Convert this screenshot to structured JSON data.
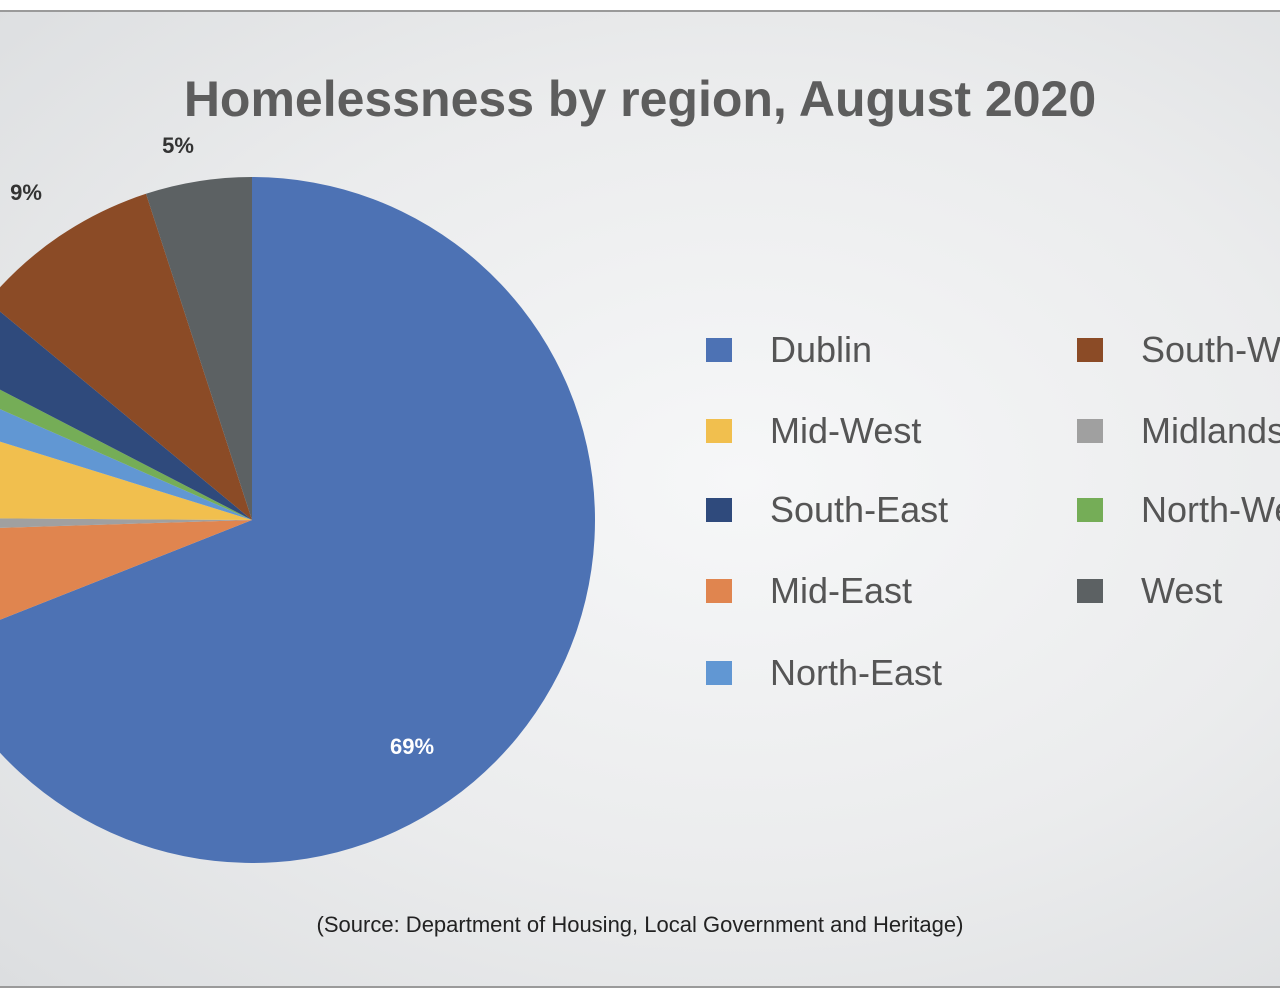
{
  "chart_data": {
    "type": "pie",
    "title": "Homelessness by region, August 2020",
    "source": "(Source: Department of Housing, Local Government and Heritage)",
    "slices": [
      {
        "name": "Dublin",
        "value": 69,
        "label": "69%",
        "color": "#4d72b4"
      },
      {
        "name": "Mid-East",
        "value": 5.5,
        "label": "",
        "color": "#e0854f"
      },
      {
        "name": "Midlands",
        "value": 0.6,
        "label": "",
        "color": "#a0a0a0"
      },
      {
        "name": "Mid-West",
        "value": 4.7,
        "label": "",
        "color": "#f1bf4e"
      },
      {
        "name": "North-East",
        "value": 1.8,
        "label": "",
        "color": "#6197d3"
      },
      {
        "name": "North-West",
        "value": 1.0,
        "label": "",
        "color": "#75ad57"
      },
      {
        "name": "South-East",
        "value": 3.4,
        "label": "",
        "color": "#2f4a7c"
      },
      {
        "name": "South-West",
        "value": 9,
        "label": "9%",
        "color": "#8b4b26"
      },
      {
        "name": "West",
        "value": 5,
        "label": "5%",
        "color": "#5c6163"
      }
    ],
    "legend": {
      "placement": "right",
      "columns": [
        [
          "Dublin",
          "Mid-West",
          "South-East",
          "Mid-East",
          "North-East"
        ],
        [
          "South-West",
          "Midlands",
          "North-West",
          "West"
        ]
      ]
    }
  }
}
